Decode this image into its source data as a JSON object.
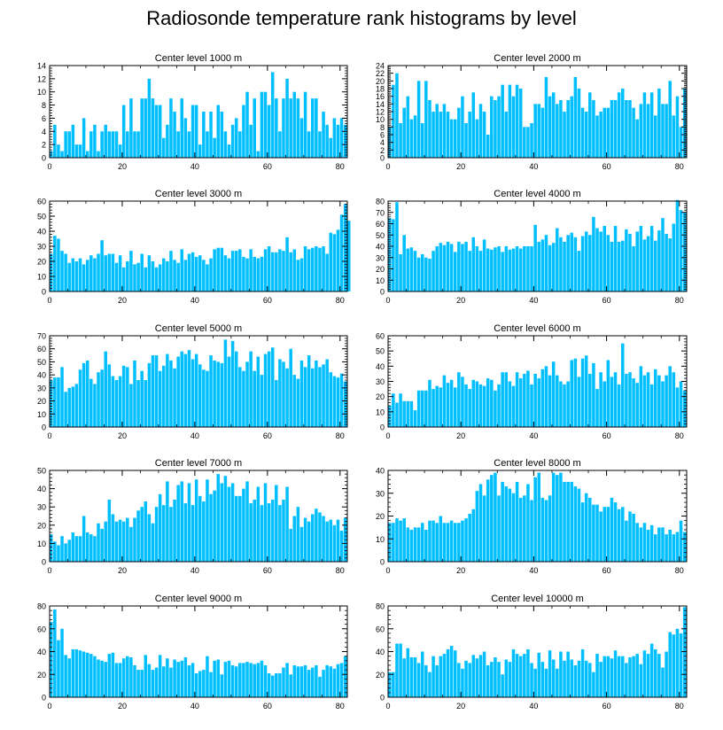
{
  "title": "Radiosonde temperature rank histograms by level",
  "colors": {
    "bar": "#00BFFF",
    "bar_edge": "#ffffff",
    "axis": "#000000",
    "background": "#ffffff"
  },
  "chart_data": [
    {
      "type": "bar",
      "title": "Center level 1000 m",
      "xlabel": "",
      "ylabel": "",
      "xlim": [
        0,
        82
      ],
      "ylim": [
        0,
        14
      ],
      "xticks": [
        0,
        20,
        40,
        60,
        80
      ],
      "yticks": [
        0,
        2,
        4,
        6,
        8,
        10,
        12,
        14
      ],
      "values": [
        1,
        5,
        2,
        1,
        4,
        4,
        5,
        2,
        2,
        6,
        1,
        4,
        5,
        1,
        4,
        5,
        4,
        4,
        4,
        2,
        8,
        4,
        9,
        4,
        4,
        9,
        9,
        12,
        9,
        8,
        8,
        3,
        5,
        9,
        7,
        4,
        9,
        6,
        4,
        8,
        8,
        2,
        7,
        4,
        7,
        3,
        8,
        7,
        4,
        2,
        5,
        6,
        4,
        8,
        10,
        5,
        9,
        1,
        10,
        10,
        8,
        13,
        9,
        4,
        9,
        12,
        9,
        10,
        9,
        6,
        10,
        4,
        9,
        9,
        4,
        7,
        5,
        3,
        6,
        5,
        6,
        5
      ]
    },
    {
      "type": "bar",
      "title": "Center level 2000 m",
      "xlabel": "",
      "ylabel": "",
      "xlim": [
        0,
        82
      ],
      "ylim": [
        0,
        24
      ],
      "xticks": [
        0,
        20,
        40,
        60,
        80
      ],
      "yticks": [
        0,
        2,
        4,
        6,
        8,
        10,
        12,
        14,
        16,
        18,
        20,
        22,
        24
      ],
      "values": [
        8,
        19,
        22,
        9,
        13,
        16,
        10,
        11,
        20,
        9,
        20,
        15,
        12,
        14,
        12,
        14,
        12,
        10,
        10,
        13,
        16,
        9,
        12,
        17,
        10,
        14,
        12,
        6,
        16,
        15,
        16,
        19,
        12,
        19,
        16,
        19,
        18,
        8,
        8,
        9,
        14,
        14,
        13,
        21,
        16,
        17,
        14,
        15,
        12,
        15,
        16,
        21,
        18,
        13,
        12,
        17,
        15,
        11,
        12,
        13,
        13,
        15,
        15,
        17,
        18,
        15,
        15,
        13,
        10,
        14,
        17,
        14,
        17,
        11,
        18,
        14,
        14,
        20,
        11,
        16,
        8,
        18
      ]
    },
    {
      "type": "bar",
      "title": "Center level 3000 m",
      "xlabel": "",
      "ylabel": "",
      "xlim": [
        0,
        82
      ],
      "ylim": [
        0,
        60
      ],
      "xticks": [
        0,
        20,
        40,
        60,
        80
      ],
      "yticks": [
        0,
        10,
        20,
        30,
        40,
        50,
        60
      ],
      "values": [
        25,
        37,
        35,
        27,
        25,
        19,
        22,
        20,
        22,
        18,
        21,
        24,
        22,
        25,
        34,
        24,
        25,
        25,
        19,
        24,
        16,
        20,
        27,
        18,
        19,
        25,
        16,
        24,
        20,
        16,
        18,
        22,
        20,
        27,
        21,
        19,
        28,
        21,
        25,
        26,
        23,
        24,
        21,
        18,
        22,
        28,
        29,
        29,
        24,
        22,
        27,
        27,
        28,
        23,
        22,
        28,
        23,
        22,
        23,
        28,
        30,
        26,
        26,
        28,
        27,
        36,
        26,
        28,
        21,
        22,
        30,
        28,
        29,
        30,
        29,
        30,
        25,
        39,
        38,
        41,
        51,
        58,
        47
      ]
    },
    {
      "type": "bar",
      "title": "Center level 4000 m",
      "xlabel": "",
      "ylabel": "",
      "xlim": [
        0,
        82
      ],
      "ylim": [
        0,
        80
      ],
      "xticks": [
        0,
        20,
        40,
        60,
        80
      ],
      "yticks": [
        0,
        10,
        20,
        30,
        40,
        50,
        60,
        70,
        80
      ],
      "values": [
        65,
        64,
        79,
        33,
        50,
        38,
        39,
        36,
        30,
        33,
        30,
        29,
        36,
        40,
        43,
        41,
        44,
        42,
        35,
        44,
        42,
        44,
        36,
        48,
        40,
        36,
        46,
        38,
        37,
        39,
        40,
        35,
        40,
        37,
        38,
        40,
        38,
        40,
        40,
        40,
        59,
        44,
        46,
        50,
        41,
        43,
        56,
        48,
        44,
        50,
        52,
        48,
        36,
        49,
        53,
        50,
        66,
        56,
        53,
        58,
        50,
        44,
        58,
        44,
        45,
        55,
        51,
        40,
        53,
        58,
        46,
        49,
        58,
        45,
        54,
        65,
        51,
        47,
        60,
        81,
        72,
        70
      ]
    },
    {
      "type": "bar",
      "title": "Center level 5000 m",
      "xlabel": "",
      "ylabel": "",
      "xlim": [
        0,
        82
      ],
      "ylim": [
        0,
        70
      ],
      "xticks": [
        0,
        20,
        40,
        60,
        80
      ],
      "yticks": [
        0,
        10,
        20,
        30,
        40,
        50,
        60,
        70
      ],
      "values": [
        36,
        38,
        38,
        46,
        27,
        30,
        31,
        33,
        44,
        49,
        51,
        37,
        33,
        42,
        44,
        58,
        48,
        39,
        36,
        39,
        47,
        46,
        33,
        51,
        36,
        43,
        36,
        49,
        55,
        55,
        43,
        47,
        56,
        51,
        45,
        54,
        58,
        56,
        59,
        52,
        56,
        48,
        44,
        43,
        55,
        51,
        50,
        49,
        67,
        54,
        66,
        58,
        46,
        43,
        50,
        58,
        43,
        54,
        40,
        56,
        58,
        61,
        36,
        52,
        50,
        45,
        60,
        40,
        37,
        51,
        46,
        55,
        45,
        51,
        46,
        48,
        52,
        42,
        39,
        38,
        41,
        35
      ]
    },
    {
      "type": "bar",
      "title": "Center level 6000 m",
      "xlabel": "",
      "ylabel": "",
      "xlim": [
        0,
        82
      ],
      "ylim": [
        0,
        60
      ],
      "xticks": [
        0,
        20,
        40,
        60,
        80
      ],
      "yticks": [
        0,
        10,
        20,
        30,
        40,
        50,
        60
      ],
      "values": [
        14,
        22,
        16,
        22,
        17,
        17,
        17,
        11,
        24,
        24,
        24,
        31,
        25,
        27,
        26,
        34,
        29,
        31,
        26,
        36,
        33,
        28,
        25,
        31,
        30,
        28,
        27,
        32,
        31,
        24,
        28,
        36,
        36,
        30,
        27,
        36,
        32,
        35,
        37,
        28,
        35,
        32,
        38,
        40,
        34,
        43,
        34,
        30,
        28,
        30,
        44,
        45,
        33,
        45,
        47,
        35,
        42,
        25,
        36,
        30,
        44,
        33,
        36,
        28,
        55,
        35,
        36,
        32,
        29,
        40,
        34,
        36,
        28,
        38,
        34,
        30,
        34,
        40,
        36,
        26,
        30,
        24
      ]
    },
    {
      "type": "bar",
      "title": "Center level 7000 m",
      "xlabel": "",
      "ylabel": "",
      "xlim": [
        0,
        82
      ],
      "ylim": [
        0,
        50
      ],
      "xticks": [
        0,
        20,
        40,
        60,
        80
      ],
      "yticks": [
        0,
        10,
        20,
        30,
        40,
        50
      ],
      "values": [
        15,
        11,
        9,
        14,
        10,
        12,
        16,
        14,
        14,
        25,
        16,
        15,
        14,
        21,
        18,
        22,
        34,
        26,
        22,
        23,
        22,
        24,
        19,
        24,
        28,
        30,
        33,
        26,
        21,
        30,
        37,
        31,
        44,
        30,
        34,
        42,
        44,
        32,
        43,
        31,
        45,
        36,
        33,
        45,
        37,
        39,
        48,
        43,
        47,
        41,
        43,
        36,
        36,
        40,
        44,
        32,
        34,
        41,
        31,
        43,
        32,
        34,
        42,
        31,
        34,
        41,
        18,
        25,
        30,
        19,
        24,
        22,
        26,
        29,
        27,
        25,
        22,
        23,
        20,
        23,
        17,
        24
      ]
    },
    {
      "type": "bar",
      "title": "Center level 8000 m",
      "xlabel": "",
      "ylabel": "",
      "xlim": [
        0,
        82
      ],
      "ylim": [
        0,
        40
      ],
      "xticks": [
        0,
        20,
        40,
        60,
        80
      ],
      "yticks": [
        0,
        10,
        20,
        30,
        40
      ],
      "values": [
        17,
        17,
        19,
        18,
        19,
        15,
        14,
        15,
        15,
        17,
        14,
        18,
        18,
        17,
        20,
        17,
        17,
        18,
        17,
        17,
        18,
        19,
        21,
        23,
        31,
        34,
        29,
        36,
        38,
        39,
        29,
        35,
        33,
        32,
        30,
        35,
        28,
        29,
        34,
        27,
        37,
        39,
        28,
        27,
        29,
        39,
        38,
        39,
        35,
        35,
        35,
        33,
        32,
        26,
        30,
        28,
        25,
        25,
        22,
        24,
        24,
        28,
        26,
        23,
        24,
        18,
        22,
        21,
        17,
        15,
        17,
        14,
        16,
        12,
        15,
        15,
        12,
        14,
        12,
        13,
        18,
        13
      ]
    },
    {
      "type": "bar",
      "title": "Center level 9000 m",
      "xlabel": "",
      "ylabel": "",
      "xlim": [
        0,
        82
      ],
      "ylim": [
        0,
        80
      ],
      "xticks": [
        0,
        20,
        40,
        60,
        80
      ],
      "yticks": [
        0,
        20,
        40,
        60,
        80
      ],
      "values": [
        66,
        77,
        50,
        60,
        37,
        34,
        42,
        42,
        41,
        40,
        39,
        38,
        36,
        33,
        32,
        31,
        38,
        39,
        30,
        30,
        34,
        36,
        35,
        28,
        24,
        24,
        37,
        29,
        24,
        26,
        37,
        27,
        34,
        26,
        33,
        31,
        32,
        35,
        28,
        30,
        21,
        23,
        24,
        36,
        22,
        32,
        33,
        20,
        31,
        32,
        28,
        27,
        30,
        30,
        31,
        30,
        29,
        30,
        32,
        28,
        21,
        19,
        21,
        21,
        26,
        30,
        20,
        28,
        27,
        27,
        28,
        24,
        26,
        28,
        18,
        24,
        28,
        27,
        25,
        29,
        30,
        36
      ]
    },
    {
      "type": "bar",
      "title": "Center level 10000 m",
      "xlabel": "",
      "ylabel": "",
      "xlim": [
        0,
        82
      ],
      "ylim": [
        0,
        80
      ],
      "xticks": [
        0,
        20,
        40,
        60,
        80
      ],
      "yticks": [
        0,
        20,
        40,
        60,
        80
      ],
      "values": [
        22,
        22,
        47,
        47,
        34,
        43,
        35,
        35,
        30,
        40,
        28,
        22,
        36,
        28,
        36,
        38,
        42,
        45,
        41,
        30,
        25,
        32,
        30,
        37,
        34,
        37,
        40,
        28,
        31,
        35,
        31,
        20,
        33,
        31,
        42,
        38,
        36,
        38,
        42,
        30,
        25,
        39,
        31,
        25,
        41,
        33,
        25,
        40,
        32,
        40,
        33,
        28,
        32,
        42,
        32,
        30,
        22,
        38,
        31,
        36,
        36,
        34,
        41,
        36,
        36,
        30,
        35,
        36,
        38,
        29,
        41,
        38,
        47,
        42,
        38,
        26,
        40,
        57,
        55,
        60,
        56,
        79
      ]
    }
  ]
}
